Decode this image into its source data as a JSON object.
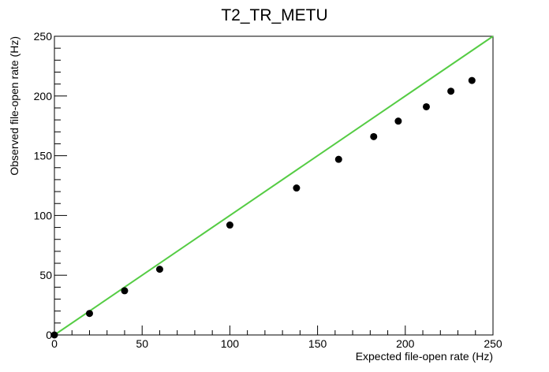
{
  "chart_data": {
    "type": "scatter",
    "title": "T2_TR_METU",
    "xlabel": "Expected file-open rate (Hz)",
    "ylabel": "Observed file-open rate (Hz)",
    "xlim": [
      0,
      250
    ],
    "ylim": [
      0,
      250
    ],
    "x_ticks": [
      "0",
      "50",
      "100",
      "150",
      "200",
      "250"
    ],
    "y_ticks": [
      "0",
      "50",
      "100",
      "150",
      "200",
      "250"
    ],
    "grid": false,
    "series": [
      {
        "marker": "circle",
        "color": "#000000",
        "points": [
          {
            "x": 0,
            "y": 0
          },
          {
            "x": 20,
            "y": 18
          },
          {
            "x": 40,
            "y": 37
          },
          {
            "x": 60,
            "y": 55
          },
          {
            "x": 100,
            "y": 92
          },
          {
            "x": 138,
            "y": 123
          },
          {
            "x": 162,
            "y": 147
          },
          {
            "x": 182,
            "y": 166
          },
          {
            "x": 196,
            "y": 179
          },
          {
            "x": 212,
            "y": 191
          },
          {
            "x": 226,
            "y": 204
          },
          {
            "x": 238,
            "y": 213
          }
        ]
      }
    ],
    "reference_line": {
      "color": "#55cc44",
      "from": [
        0,
        0
      ],
      "to": [
        250,
        250
      ]
    }
  }
}
